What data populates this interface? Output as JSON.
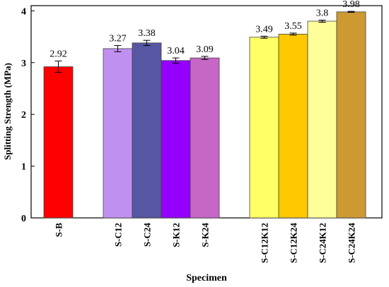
{
  "chart_data": {
    "type": "bar",
    "xlabel": "Specimen",
    "ylabel": "Splitting Strength (MPa)",
    "ylim": [
      0,
      4.1
    ],
    "yticks": [
      0,
      1,
      2,
      3,
      4
    ],
    "grid": false,
    "legend": "none",
    "categories": [
      "S-B",
      "S-C12",
      "S-C24",
      "S-K12",
      "S-K24",
      "S-C12K12",
      "S-C12K24",
      "S-C24K12",
      "S-C24K24"
    ],
    "groups": [
      [
        0
      ],
      [
        1,
        2,
        3,
        4
      ],
      [
        5,
        6,
        7,
        8
      ]
    ],
    "values": [
      2.92,
      3.27,
      3.38,
      3.04,
      3.09,
      3.49,
      3.55,
      3.8,
      3.98
    ],
    "value_labels": [
      "2.92",
      "3.27",
      "3.38",
      "3.04",
      "3.09",
      "3.49",
      "3.55",
      "3.8",
      "3.98"
    ],
    "errors": [
      0.11,
      0.06,
      0.05,
      0.05,
      0.03,
      0.02,
      0.02,
      0.02,
      0.01
    ],
    "colors": [
      "#ff0000",
      "#c090f0",
      "#5656a3",
      "#9400ff",
      "#c667c6",
      "#ffff66",
      "#ffc800",
      "#ffff99",
      "#cc9933"
    ]
  }
}
